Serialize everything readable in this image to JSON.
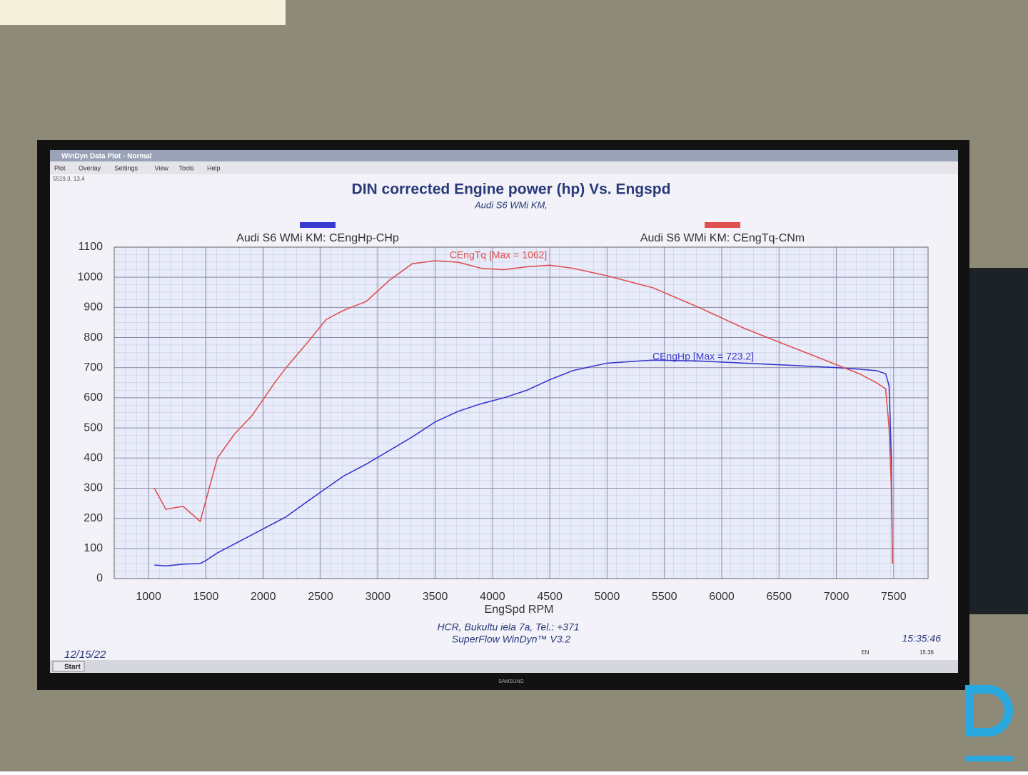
{
  "window": {
    "title": "WinDyn Data Plot - Normal",
    "menu": [
      "Plot",
      "Overlay",
      "Settings",
      "View",
      "Tools",
      "Help"
    ],
    "status": "5519.3, 13.4"
  },
  "chart_data": {
    "type": "line",
    "title": "DIN corrected Engine power (hp) Vs. Engspd",
    "subtitle": "Audi S6 WMi KM,",
    "xlabel": "EngSpd RPM",
    "x": [
      1050,
      1150,
      1300,
      1450,
      1500,
      1600,
      1750,
      1900,
      2100,
      2200,
      2400,
      2550,
      2700,
      2900,
      3100,
      3300,
      3500,
      3700,
      3900,
      4100,
      4300,
      4500,
      4700,
      5000,
      5400,
      5800,
      6200,
      6600,
      7000,
      7200,
      7350,
      7430,
      7460,
      7480,
      7490
    ],
    "series": [
      {
        "name": "Audi S6 WMi KM: CEngHp-CHp",
        "color": "#3a3ad0",
        "values": [
          45,
          42,
          48,
          50,
          60,
          85,
          115,
          145,
          185,
          205,
          260,
          300,
          340,
          380,
          425,
          470,
          520,
          555,
          580,
          600,
          625,
          660,
          690,
          715,
          725,
          722,
          715,
          708,
          700,
          695,
          690,
          680,
          640,
          400,
          50
        ]
      },
      {
        "name": "Audi S6 WMi KM: CEngTq-CNm",
        "color": "#e05050",
        "values": [
          300,
          230,
          240,
          190,
          260,
          400,
          480,
          540,
          650,
          700,
          790,
          860,
          890,
          920,
          990,
          1045,
          1055,
          1050,
          1030,
          1025,
          1035,
          1040,
          1030,
          1005,
          965,
          900,
          830,
          770,
          710,
          680,
          650,
          630,
          500,
          300,
          50
        ]
      }
    ],
    "annotations": [
      {
        "text": "CEngTq [Max = 1062]",
        "color": "#e05050"
      },
      {
        "text": "CEngHp [Max = 723.2]",
        "color": "#3a3ad0"
      }
    ],
    "xlim": [
      700,
      7800
    ],
    "xticks": [
      1000,
      1500,
      2000,
      2500,
      3000,
      3500,
      4000,
      4500,
      5000,
      5500,
      6000,
      6500,
      7000,
      7500
    ],
    "ylim": [
      0,
      1100
    ],
    "yticks": [
      0,
      100,
      200,
      300,
      400,
      500,
      600,
      700,
      800,
      900,
      1000,
      1100
    ],
    "grid": true
  },
  "footer": {
    "address": "HCR, Bukultu iela 7a, Tel.: +371",
    "software": "SuperFlow WinDyn™ V3.2",
    "date": "12/15/22",
    "time": "15:35:46"
  },
  "taskbar": {
    "start": "Start",
    "lang": "EN",
    "clock": "15:36"
  },
  "monitor": {
    "brand": "SAMSUNG"
  }
}
